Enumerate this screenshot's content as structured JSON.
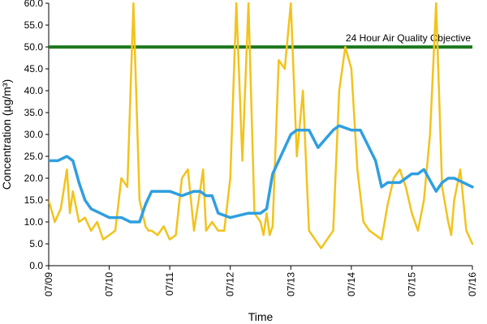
{
  "chart_data": {
    "type": "line",
    "title": "",
    "xlabel": "Time",
    "ylabel": "Concentration (µg/m³)",
    "ylim": [
      0,
      60
    ],
    "y_ticks": [
      "0.0",
      "5.0",
      "10.0",
      "15.0",
      "20.0",
      "25.0",
      "30.0",
      "35.0",
      "40.0",
      "45.0",
      "50.0",
      "55.0",
      "60.0"
    ],
    "x_ticks": [
      "07/09",
      "07/10",
      "07/11",
      "07/12",
      "07/13",
      "07/14",
      "07/15",
      "07/16"
    ],
    "x_range": [
      "07/09",
      "07/16"
    ],
    "grid": false,
    "reference_line": {
      "label": "24 Hour Air Quality Objective",
      "value": 50,
      "color": "#1f7a1f"
    },
    "series": [
      {
        "color": "#f2c31c",
        "x": [
          0,
          0.1,
          0.2,
          0.3,
          0.35,
          0.4,
          0.5,
          0.6,
          0.7,
          0.8,
          0.9,
          1.0,
          1.1,
          1.2,
          1.3,
          1.4,
          1.5,
          1.6,
          1.65,
          1.7,
          1.8,
          1.9,
          2.0,
          2.1,
          2.2,
          2.3,
          2.4,
          2.5,
          2.55,
          2.6,
          2.7,
          2.8,
          2.9,
          3.0,
          3.1,
          3.2,
          3.3,
          3.4,
          3.5,
          3.55,
          3.6,
          3.65,
          3.7,
          3.8,
          3.9,
          4.0,
          4.1,
          4.2,
          4.3,
          4.4,
          4.5,
          4.6,
          4.7,
          4.8,
          4.9,
          5.0,
          5.1,
          5.2,
          5.3,
          5.4,
          5.5,
          5.55,
          5.6,
          5.7,
          5.8,
          5.9,
          6.0,
          6.1,
          6.2,
          6.3,
          6.4,
          6.5,
          6.6,
          6.65,
          6.7,
          6.8,
          6.9,
          7.0
        ],
        "y": [
          15,
          10,
          13,
          22,
          12,
          17,
          10,
          11,
          8,
          10,
          6,
          7,
          8,
          20,
          18,
          60,
          15,
          9,
          8,
          8,
          7,
          9,
          6,
          7,
          20,
          22,
          8,
          17,
          22,
          8,
          10,
          8,
          8,
          20,
          60,
          24,
          60,
          12,
          10,
          7,
          12,
          7,
          9,
          47,
          45,
          60,
          25,
          40,
          8,
          6,
          4,
          6,
          8,
          40,
          50,
          45,
          22,
          10,
          8,
          7,
          6,
          10,
          14,
          20,
          22,
          18,
          12,
          8,
          15,
          30,
          60,
          18,
          10,
          7,
          15,
          22,
          8,
          5
        ]
      },
      {
        "color": "#2f9fe0",
        "x": [
          0,
          0.15,
          0.3,
          0.4,
          0.5,
          0.6,
          0.7,
          0.85,
          1.0,
          1.2,
          1.35,
          1.5,
          1.6,
          1.7,
          2.0,
          2.2,
          2.4,
          2.5,
          2.6,
          2.7,
          2.8,
          3.0,
          3.3,
          3.4,
          3.5,
          3.6,
          3.7,
          4.0,
          4.1,
          4.2,
          4.3,
          4.45,
          4.7,
          4.8,
          5.0,
          5.15,
          5.4,
          5.5,
          5.6,
          5.8,
          6.0,
          6.1,
          6.2,
          6.4,
          6.5,
          6.6,
          6.7,
          7.0
        ],
        "y": [
          24,
          24,
          25,
          24,
          19,
          15,
          13,
          12,
          11,
          11,
          10,
          10,
          14,
          17,
          17,
          16,
          17,
          17,
          16,
          16,
          12,
          11,
          12,
          12,
          12,
          13,
          21,
          30,
          31,
          31,
          31,
          27,
          31,
          32,
          31,
          31,
          24,
          18,
          19,
          19,
          21,
          21,
          22,
          17,
          19,
          20,
          20,
          18
        ]
      }
    ]
  }
}
